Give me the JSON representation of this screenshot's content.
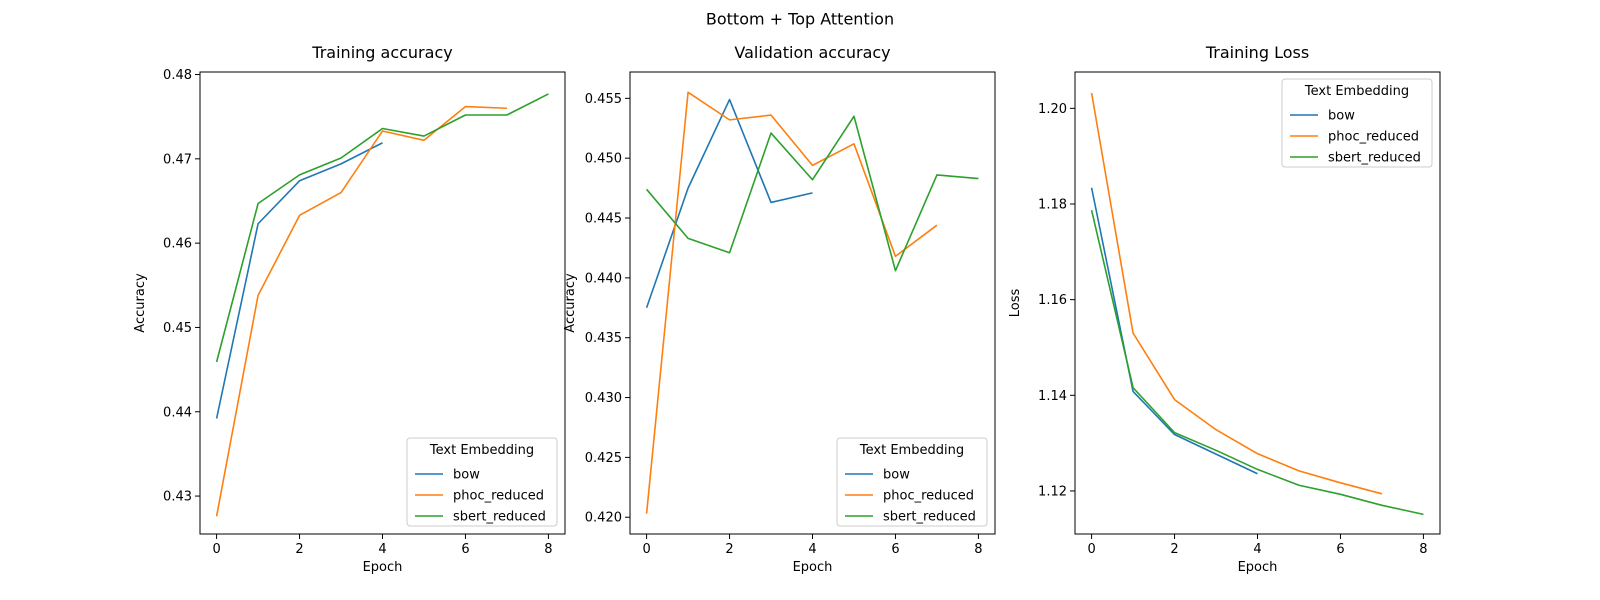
{
  "figure_title": "Bottom + Top Attention",
  "chart_data": [
    {
      "type": "line",
      "title": "Training accuracy",
      "xlabel": "Epoch",
      "ylabel": "Accuracy",
      "xlim": [
        -0.4,
        8.4
      ],
      "ylim": [
        0.4255,
        0.4803
      ],
      "xticks": [
        0,
        2,
        4,
        6,
        8
      ],
      "yticks": [
        0.43,
        0.44,
        0.45,
        0.46,
        0.47,
        0.48
      ],
      "tick_decimals": 2,
      "grid": false,
      "legend": {
        "title": "Text Embedding",
        "placement": "lower-right"
      },
      "series": [
        {
          "name": "bow",
          "color": "#1f77b4",
          "x": [
            0,
            1,
            2,
            3,
            4
          ],
          "values": [
            0.4392,
            0.4623,
            0.4674,
            0.4694,
            0.4719
          ]
        },
        {
          "name": "phoc_reduced",
          "color": "#ff7f0e",
          "x": [
            0,
            1,
            2,
            3,
            4,
            5,
            6,
            7
          ],
          "values": [
            0.4276,
            0.4538,
            0.4633,
            0.466,
            0.4733,
            0.4722,
            0.4762,
            0.476
          ]
        },
        {
          "name": "sbert_reduced",
          "color": "#2ca02c",
          "x": [
            0,
            1,
            2,
            3,
            4,
            5,
            6,
            7,
            8
          ],
          "values": [
            0.4459,
            0.4647,
            0.4681,
            0.4701,
            0.4736,
            0.4727,
            0.4752,
            0.4752,
            0.4777
          ]
        }
      ]
    },
    {
      "type": "line",
      "title": "Validation accuracy",
      "xlabel": "Epoch",
      "ylabel": "Accuracy",
      "xlim": [
        -0.4,
        8.4
      ],
      "ylim": [
        0.4186,
        0.4572
      ],
      "xticks": [
        0,
        2,
        4,
        6,
        8
      ],
      "yticks": [
        0.42,
        0.425,
        0.43,
        0.435,
        0.44,
        0.445,
        0.45,
        0.455
      ],
      "tick_decimals": 3,
      "grid": false,
      "legend": {
        "title": "Text Embedding",
        "placement": "lower-right"
      },
      "series": [
        {
          "name": "bow",
          "color": "#1f77b4",
          "x": [
            0,
            1,
            2,
            3,
            4
          ],
          "values": [
            0.4375,
            0.4475,
            0.4549,
            0.4463,
            0.4471
          ]
        },
        {
          "name": "phoc_reduced",
          "color": "#ff7f0e",
          "x": [
            0,
            1,
            2,
            3,
            4,
            5,
            6,
            7
          ],
          "values": [
            0.4203,
            0.4555,
            0.4532,
            0.4536,
            0.4494,
            0.4512,
            0.4418,
            0.4444
          ]
        },
        {
          "name": "sbert_reduced",
          "color": "#2ca02c",
          "x": [
            0,
            1,
            2,
            3,
            4,
            5,
            6,
            7,
            8
          ],
          "values": [
            0.4474,
            0.4433,
            0.4421,
            0.4521,
            0.4482,
            0.4535,
            0.4406,
            0.4486,
            0.4483
          ]
        }
      ]
    },
    {
      "type": "line",
      "title": "Training Loss",
      "xlabel": "Epoch",
      "ylabel": "Loss",
      "xlim": [
        -0.4,
        8.4
      ],
      "ylim": [
        1.111,
        1.2076
      ],
      "xticks": [
        0,
        2,
        4,
        6,
        8
      ],
      "yticks": [
        1.12,
        1.14,
        1.16,
        1.18,
        1.2
      ],
      "tick_decimals": 2,
      "grid": false,
      "legend": {
        "title": "Text Embedding",
        "placement": "upper-right"
      },
      "series": [
        {
          "name": "bow",
          "color": "#1f77b4",
          "x": [
            0,
            1,
            2,
            3,
            4
          ],
          "values": [
            1.1834,
            1.1408,
            1.1318,
            1.1277,
            1.1236
          ]
        },
        {
          "name": "phoc_reduced",
          "color": "#ff7f0e",
          "x": [
            0,
            1,
            2,
            3,
            4,
            5,
            6,
            7
          ],
          "values": [
            1.2032,
            1.153,
            1.1391,
            1.1328,
            1.1278,
            1.1242,
            1.1217,
            1.1194
          ]
        },
        {
          "name": "sbert_reduced",
          "color": "#2ca02c",
          "x": [
            0,
            1,
            2,
            3,
            4,
            5,
            6,
            7,
            8
          ],
          "values": [
            1.1787,
            1.1416,
            1.1322,
            1.1285,
            1.1245,
            1.1212,
            1.1193,
            1.117,
            1.1151
          ]
        }
      ]
    }
  ]
}
